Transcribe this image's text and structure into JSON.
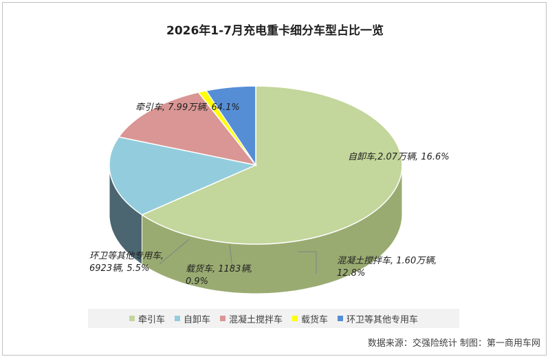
{
  "title": "2026年1-7月充电重卡细分车型占比一览",
  "source": "数据来源：交强险统计  制图：第一商用车网",
  "chart_data": {
    "type": "pie",
    "title": "2026年1-7月充电重卡细分车型占比一览",
    "legend_position": "bottom",
    "slices": [
      {
        "name": "牵引车",
        "volume": "7.99万辆",
        "percent": 64.1,
        "color": "#c3d69b",
        "side_color": "#9aab72",
        "label_lines": [
          "牵引车, 7.99万辆, 64.1%"
        ]
      },
      {
        "name": "自卸车",
        "volume": "2.07万辆",
        "percent": 16.6,
        "color": "#93cddd",
        "side_color": "#4b6670",
        "label_lines": [
          "自卸车,2.07万辆, 16.6%"
        ]
      },
      {
        "name": "混凝土搅拌车",
        "volume": "1.60万辆",
        "percent": 12.8,
        "color": "#d99694",
        "side_color": "#5e3634",
        "label_lines": [
          "混凝土搅拌车, 1.60万辆,",
          "12.8%"
        ]
      },
      {
        "name": "载货车",
        "volume": "1183辆",
        "percent": 0.9,
        "color": "#ffff00",
        "side_color": "#b3b300",
        "label_lines": [
          "载货车, 1183辆,",
          "0.9%"
        ]
      },
      {
        "name": "环卫等其他专用车",
        "volume": "6923辆",
        "percent": 5.5,
        "color": "#558ed5",
        "side_color": "#2e5690",
        "label_lines": [
          "环卫等其他专用车,",
          "6923辆, 5.5%"
        ]
      }
    ]
  }
}
